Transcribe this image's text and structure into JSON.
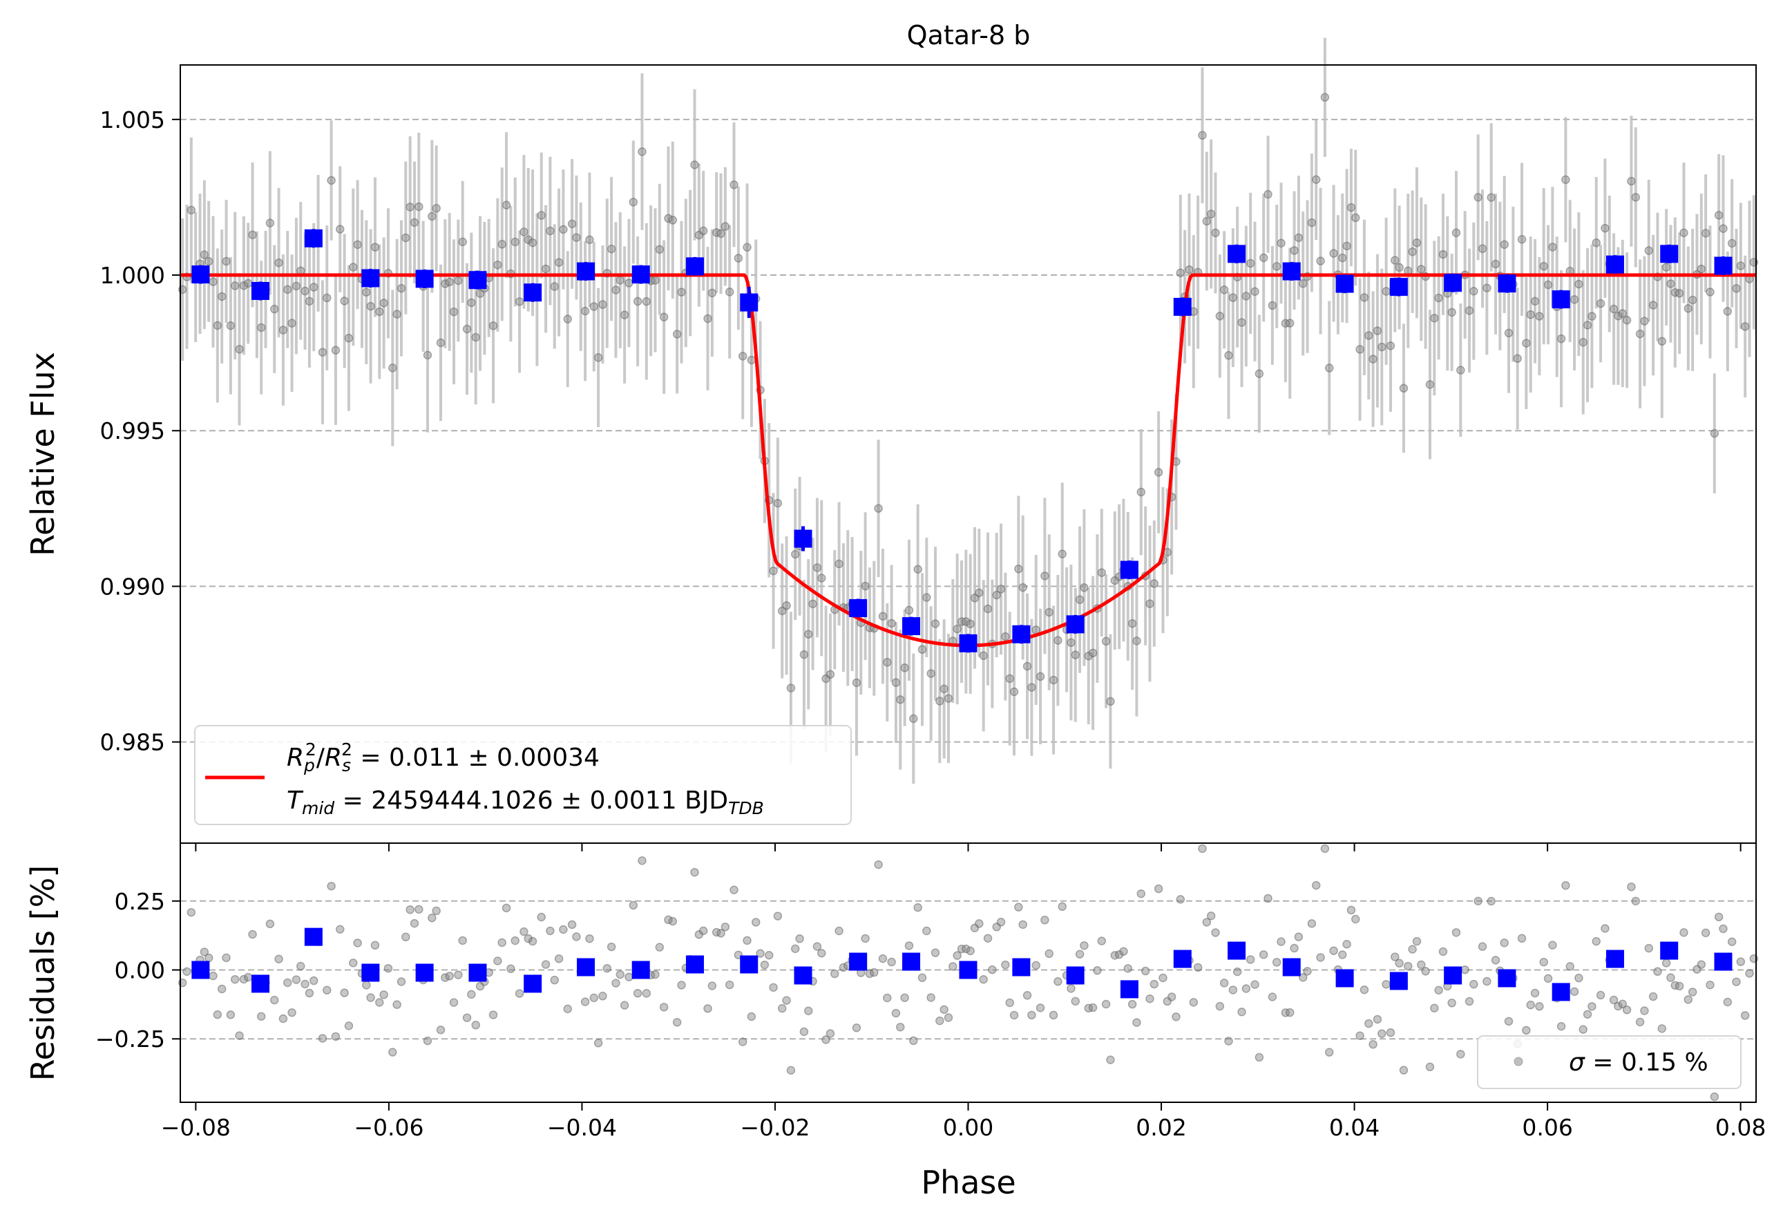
{
  "chart_data": [
    {
      "type": "scatter",
      "panel": "light-curve",
      "title": "Qatar-8 b",
      "xlabel": "",
      "ylabel": "Relative Flux",
      "xlim": [
        -0.0816,
        0.0816
      ],
      "ylim": [
        0.98175,
        1.00675
      ],
      "xticks": [
        "−0.08",
        "−0.06",
        "−0.04",
        "−0.02",
        "0.00",
        "0.02",
        "0.04",
        "0.06",
        "0.08"
      ],
      "yticks": [
        "0.985",
        "0.990",
        "0.995",
        "1.000",
        "1.005"
      ],
      "grid": "horizontal dashed",
      "legend_placement": "lower-left",
      "legend": {
        "line1_R": "R",
        "line1_p": "p",
        "line1_sq": "2",
        "line1_slash": "/",
        "line1_s": "s",
        "line1_sq2": "2",
        "line1_rest": " = 0.011 ± 0.00034",
        "line2_T": "T",
        "line2_sub": "mid",
        "line2_rest": " = 2459444.1026 ± 0.0011 BJD",
        "line2_tdb": "TDB"
      },
      "model": {
        "name": "transit model",
        "depth": 0.0119,
        "t1": -0.0232,
        "t2": -0.0197,
        "t3": 0.0197,
        "t4": 0.0232,
        "color": "#ff0000"
      },
      "raw_points": {
        "n": 360,
        "color": "#808080",
        "scatter_sd": 0.0015,
        "yerr": 0.0022,
        "error_color": "#c0c0c0"
      },
      "binned": {
        "color": "#0000ff",
        "x": [
          -0.0795,
          -0.0733,
          -0.0678,
          -0.0619,
          -0.0563,
          -0.0508,
          -0.0451,
          -0.0396,
          -0.0339,
          -0.0283,
          -0.0227,
          -0.0171,
          -0.0114,
          -0.0059,
          0.0,
          0.0055,
          0.0111,
          0.0167,
          0.0222,
          0.0278,
          0.0335,
          0.039,
          0.0446,
          0.0502,
          0.0558,
          0.0614,
          0.067,
          0.0726,
          0.0782
        ],
        "y": [
          1.00002,
          0.99949,
          1.00118,
          0.9999,
          0.99988,
          0.99984,
          0.99944,
          1.00012,
          1.00002,
          1.00028,
          0.99912,
          0.99153,
          0.9893,
          0.98872,
          0.98817,
          0.98846,
          0.98878,
          0.99053,
          0.99898,
          1.00068,
          1.00012,
          0.99972,
          0.99962,
          0.99975,
          0.99973,
          0.99922,
          1.00034,
          1.00068,
          1.0003
        ],
        "yerr": [
          0.0003,
          0.0003,
          0.0003,
          0.0003,
          0.0003,
          0.0003,
          0.0003,
          0.0003,
          0.0003,
          0.0003,
          0.0005,
          0.0004,
          0.0003,
          0.0003,
          0.0003,
          0.0003,
          0.0003,
          0.0003,
          0.0003,
          0.0003,
          0.0003,
          0.0003,
          0.0003,
          0.0003,
          0.0003,
          0.0003,
          0.0003,
          0.0003,
          0.0003
        ]
      }
    },
    {
      "type": "scatter",
      "panel": "residuals",
      "xlabel": "Phase",
      "ylabel": "Residuals [%]",
      "xlim": [
        -0.0816,
        0.0816
      ],
      "ylim": [
        -0.48,
        0.46
      ],
      "yticks": [
        "−0.25",
        "0.00",
        "0.25"
      ],
      "grid": "horizontal dashed",
      "legend_placement": "lower-right",
      "legend": {
        "sigma": "σ",
        "rest": " = 0.15 %"
      },
      "raw_points": {
        "n": 360,
        "color": "#808080",
        "scatter_sd": 0.15
      },
      "binned": {
        "color": "#0000ff",
        "x": [
          -0.0795,
          -0.0733,
          -0.0678,
          -0.0619,
          -0.0563,
          -0.0508,
          -0.0451,
          -0.0396,
          -0.0339,
          -0.0283,
          -0.0227,
          -0.0171,
          -0.0114,
          -0.0059,
          0.0,
          0.0055,
          0.0111,
          0.0167,
          0.0222,
          0.0278,
          0.0335,
          0.039,
          0.0446,
          0.0502,
          0.0558,
          0.0614,
          0.067,
          0.0726,
          0.0782
        ],
        "y": [
          0.0,
          -0.05,
          0.12,
          -0.01,
          -0.01,
          -0.01,
          -0.05,
          0.01,
          0.0,
          0.02,
          0.02,
          -0.02,
          0.03,
          0.03,
          0.0,
          0.01,
          -0.02,
          -0.07,
          0.04,
          0.07,
          0.01,
          -0.03,
          -0.04,
          -0.02,
          -0.03,
          -0.08,
          0.04,
          0.07,
          0.03
        ]
      }
    }
  ]
}
